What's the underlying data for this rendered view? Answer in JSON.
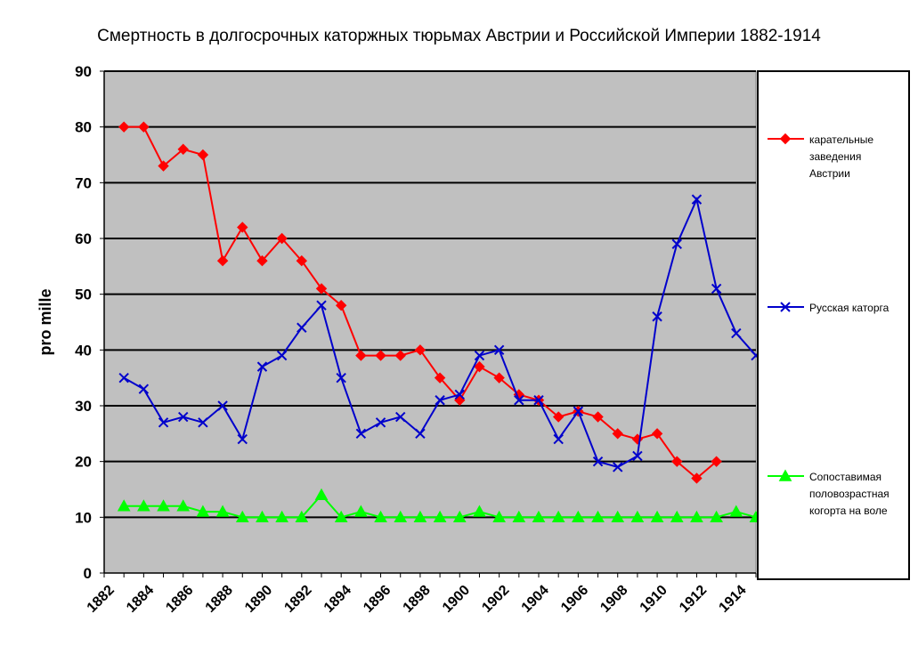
{
  "chart_data": {
    "type": "line",
    "title": "Смертность в долгосрочных каторжных тюрьмах Австрии и Российской Империи 1882-1914",
    "ylabel": "pro mille",
    "xlabel": "",
    "ylim": [
      0,
      90
    ],
    "y_ticks": [
      "0",
      "10",
      "20",
      "30",
      "40",
      "50",
      "60",
      "70",
      "80",
      "90"
    ],
    "x_tick_labels": [
      "1882",
      "1884",
      "1886",
      "1888",
      "1890",
      "1892",
      "1894",
      "1896",
      "1898",
      "1900",
      "1902",
      "1904",
      "1906",
      "1908",
      "1910",
      "1912",
      "1914"
    ],
    "x": [
      1883,
      1884,
      1885,
      1886,
      1887,
      1888,
      1889,
      1890,
      1891,
      1892,
      1893,
      1894,
      1895,
      1896,
      1897,
      1898,
      1899,
      1900,
      1901,
      1902,
      1903,
      1904,
      1905,
      1906,
      1907,
      1908,
      1909,
      1910,
      1911,
      1912,
      1913,
      1914,
      1915
    ],
    "grid": true,
    "legend_position": "right",
    "plot_background": "#c0c0c0",
    "series": [
      {
        "name": "карательные заведения Австрии",
        "legend_lines": [
          "карательные",
          "заведения",
          "Австрии"
        ],
        "color": "#ff0000",
        "marker": "diamond",
        "values": [
          80,
          80,
          73,
          76,
          75,
          56,
          62,
          56,
          60,
          56,
          51,
          48,
          39,
          39,
          39,
          40,
          35,
          31,
          37,
          35,
          32,
          31,
          28,
          29,
          28,
          25,
          24,
          25,
          20,
          17,
          20,
          null,
          null
        ]
      },
      {
        "name": "Русская каторга",
        "legend_lines": [
          "Русская каторга"
        ],
        "color": "#0000cc",
        "marker": "x",
        "values": [
          35,
          33,
          27,
          28,
          27,
          30,
          24,
          37,
          39,
          44,
          48,
          35,
          25,
          27,
          28,
          25,
          31,
          32,
          39,
          40,
          31,
          31,
          24,
          29,
          20,
          19,
          21,
          46,
          59,
          67,
          51,
          43,
          39
        ]
      },
      {
        "name": "Сопоставимая половозрастная когорта на воле",
        "legend_lines": [
          "Сопоставимая",
          "половозрастная",
          "когорта на воле"
        ],
        "color": "#00ff00",
        "marker": "triangle",
        "values": [
          12,
          12,
          12,
          12,
          11,
          11,
          10,
          10,
          10,
          10,
          14,
          10,
          11,
          10,
          10,
          10,
          10,
          10,
          11,
          10,
          10,
          10,
          10,
          10,
          10,
          10,
          10,
          10,
          10,
          10,
          10,
          11,
          10
        ]
      }
    ]
  }
}
